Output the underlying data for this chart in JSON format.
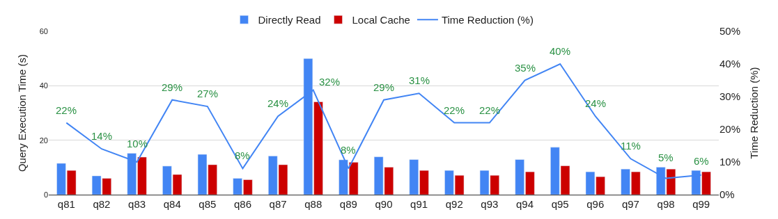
{
  "chart_data": {
    "type": "bar",
    "ylabel": "Query Execution Time (s)",
    "y2label": "Time Reduction (%)",
    "categories": [
      "q81",
      "q82",
      "q83",
      "q84",
      "q85",
      "q86",
      "q87",
      "q88",
      "q89",
      "q90",
      "q91",
      "q92",
      "q93",
      "q94",
      "q95",
      "q96",
      "q97",
      "q98",
      "q99"
    ],
    "series": [
      {
        "name": "Directly Read",
        "color": "#4285f4",
        "values": [
          11.5,
          6.9,
          15.2,
          10.5,
          14.8,
          6.0,
          14.2,
          50.0,
          12.8,
          13.9,
          12.9,
          8.9,
          8.9,
          12.9,
          17.4,
          8.4,
          9.4,
          10.1,
          8.9
        ]
      },
      {
        "name": "Local Cache",
        "color": "#cc0000",
        "values": [
          8.9,
          6.0,
          13.8,
          7.4,
          11.0,
          5.5,
          11.0,
          34.1,
          11.9,
          10.1,
          8.9,
          7.1,
          7.1,
          8.4,
          10.6,
          6.6,
          8.4,
          9.4,
          8.4
        ]
      },
      {
        "name": "Time Reduction (%)",
        "type": "line",
        "axis": "y2",
        "color": "#4285f4",
        "values": [
          22,
          14,
          10,
          29,
          27,
          8,
          24,
          32,
          8,
          29,
          31,
          22,
          22,
          35,
          40,
          24,
          11,
          5,
          6
        ],
        "value_labels": [
          "22%",
          "14%",
          "10%",
          "29%",
          "27%",
          "8%",
          "24%",
          "32%",
          "8%",
          "29%",
          "31%",
          "22%",
          "22%",
          "35%",
          "40%",
          "24%",
          "11%",
          "5%",
          "6%"
        ]
      }
    ],
    "ylim": [
      0,
      60
    ],
    "yticks": [
      0,
      20,
      40,
      60
    ],
    "y2lim": [
      0,
      50
    ],
    "y2ticks": [
      {
        "value": 0,
        "label": "0%"
      },
      {
        "value": 10,
        "label": "10%"
      },
      {
        "value": 20,
        "label": "20%"
      },
      {
        "value": 30,
        "label": "30%"
      },
      {
        "value": 40,
        "label": "40%"
      },
      {
        "value": 50,
        "label": "50%"
      }
    ],
    "grid": "y",
    "legend": "top"
  }
}
